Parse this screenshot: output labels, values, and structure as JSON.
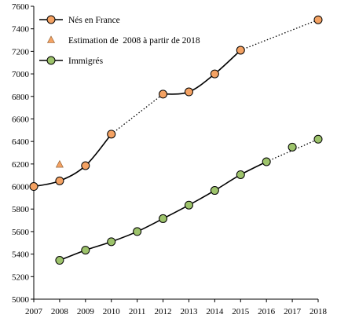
{
  "chart_data": {
    "type": "line",
    "x": [
      2007,
      2008,
      2009,
      2010,
      2011,
      2012,
      2013,
      2014,
      2015,
      2016,
      2017,
      2018
    ],
    "xlim": [
      2007,
      2018
    ],
    "ylim": [
      5000,
      7600
    ],
    "yticks": [
      5000,
      5200,
      5400,
      5600,
      5800,
      6000,
      6200,
      6400,
      6600,
      6800,
      7000,
      7200,
      7400,
      7600
    ],
    "grid": false,
    "legend": "top-left",
    "series": [
      {
        "name": "Nés en France",
        "color": "#f4a263",
        "marker": "circle",
        "points": [
          [
            2007,
            6000
          ],
          [
            2008,
            6050
          ],
          [
            2009,
            6185
          ],
          [
            2010,
            6465
          ],
          [
            2012,
            6820
          ],
          [
            2013,
            6840
          ],
          [
            2014,
            7000
          ],
          [
            2015,
            7210
          ],
          [
            2018,
            7480
          ]
        ],
        "solid_segments": [
          [
            2007,
            2010
          ],
          [
            2012,
            2015
          ]
        ],
        "dotted_segments": [
          [
            2010,
            2012
          ],
          [
            2015,
            2018
          ]
        ]
      },
      {
        "name": "Estimation de  2008 à partir de 2018",
        "color": "#f4a263",
        "marker": "triangle",
        "points": [
          [
            2008,
            6195
          ]
        ]
      },
      {
        "name": "Immigrés",
        "color": "#9dc36b",
        "marker": "circle",
        "points": [
          [
            2008,
            5345
          ],
          [
            2009,
            5435
          ],
          [
            2010,
            5510
          ],
          [
            2011,
            5600
          ],
          [
            2012,
            5715
          ],
          [
            2013,
            5835
          ],
          [
            2014,
            5965
          ],
          [
            2015,
            6105
          ],
          [
            2016,
            6220
          ],
          [
            2017,
            6350
          ],
          [
            2018,
            6420
          ]
        ],
        "solid_segments": [
          [
            2008,
            2016
          ]
        ],
        "dotted_segments": [
          [
            2016,
            2018
          ]
        ]
      }
    ]
  }
}
